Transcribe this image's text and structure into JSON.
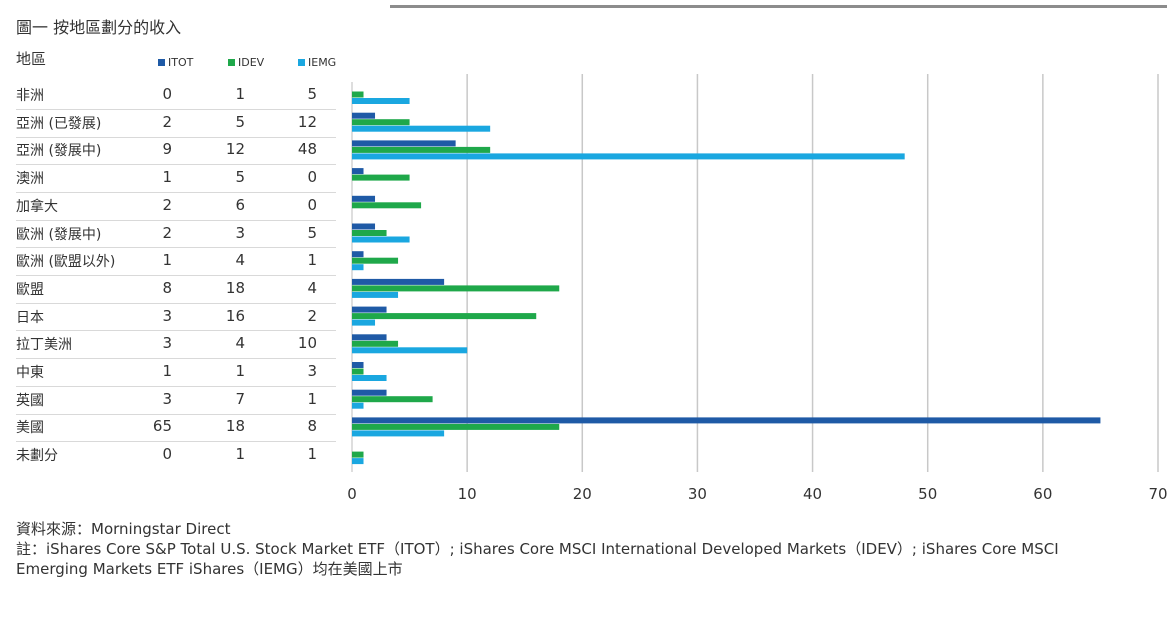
{
  "title": "圖一 按地區劃分的收入",
  "region_header": "地區",
  "colors": {
    "ITOT": "#1f5aa6",
    "IDEV": "#1fa84a",
    "IEMG": "#1aa7e0"
  },
  "chart_data": {
    "type": "bar",
    "orientation": "horizontal",
    "categories": [
      "非洲",
      "亞洲 (已發展)",
      "亞洲 (發展中)",
      "澳洲",
      "加拿大",
      "歐洲 (發展中)",
      "歐洲 (歐盟以外)",
      "歐盟",
      "日本",
      "拉丁美洲",
      "中東",
      "英國",
      "美國",
      "未劃分"
    ],
    "series": [
      {
        "name": "ITOT",
        "values": [
          0,
          2,
          9,
          1,
          2,
          2,
          1,
          8,
          3,
          3,
          1,
          3,
          65,
          0
        ]
      },
      {
        "name": "IDEV",
        "values": [
          1,
          5,
          12,
          5,
          6,
          3,
          4,
          18,
          16,
          4,
          1,
          7,
          18,
          1
        ]
      },
      {
        "name": "IEMG",
        "values": [
          5,
          12,
          48,
          0,
          0,
          5,
          1,
          4,
          2,
          10,
          3,
          1,
          8,
          1
        ]
      }
    ],
    "xlim": [
      0,
      70
    ],
    "xticks": [
      "0",
      "10",
      "20",
      "30",
      "40",
      "50",
      "60",
      "70"
    ],
    "grid": true,
    "legend_position": "top"
  },
  "notes": {
    "source": "資料來源：Morningstar Direct",
    "note_line1": "註：iShares Core S&P Total U.S. Stock Market ETF（ITOT）; iShares Core MSCI International Developed Markets（IDEV）; iShares Core MSCI",
    "note_line2": "Emerging Markets ETF iShares（IEMG）均在美國上市"
  }
}
